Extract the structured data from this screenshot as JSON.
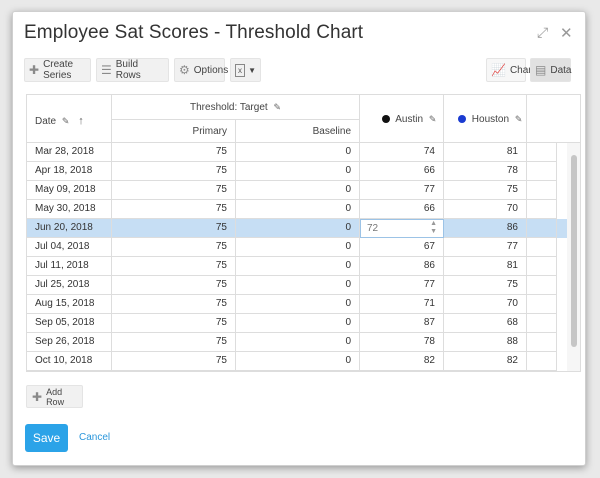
{
  "dialog": {
    "title": "Employee Sat Scores - Threshold Chart"
  },
  "toolbar": {
    "create_series": "Create Series",
    "build_rows": "Build Rows",
    "options": "Options",
    "export_icon_text": "x",
    "chart": "Chart",
    "data": "Data"
  },
  "table": {
    "headers": {
      "date": "Date",
      "group": "Threshold: Target",
      "primary": "Primary",
      "baseline": "Baseline",
      "austin": "Austin",
      "houston": "Houston"
    },
    "series_colors": {
      "austin": "#111111",
      "houston": "#1a3bd1"
    },
    "rows": [
      {
        "date": "Mar 28, 2018",
        "primary": "75",
        "baseline": "0",
        "austin": "74",
        "houston": "81"
      },
      {
        "date": "Apr 18, 2018",
        "primary": "75",
        "baseline": "0",
        "austin": "66",
        "houston": "78"
      },
      {
        "date": "May 09, 2018",
        "primary": "75",
        "baseline": "0",
        "austin": "77",
        "houston": "75"
      },
      {
        "date": "May 30, 2018",
        "primary": "75",
        "baseline": "0",
        "austin": "66",
        "houston": "70"
      },
      {
        "date": "Jun 20, 2018",
        "primary": "75",
        "baseline": "0",
        "austin": "72",
        "houston": "86"
      },
      {
        "date": "Jul 04, 2018",
        "primary": "75",
        "baseline": "0",
        "austin": "67",
        "houston": "77"
      },
      {
        "date": "Jul 11, 2018",
        "primary": "75",
        "baseline": "0",
        "austin": "86",
        "houston": "81"
      },
      {
        "date": "Jul 25, 2018",
        "primary": "75",
        "baseline": "0",
        "austin": "77",
        "houston": "75"
      },
      {
        "date": "Aug 15, 2018",
        "primary": "75",
        "baseline": "0",
        "austin": "71",
        "houston": "70"
      },
      {
        "date": "Sep 05, 2018",
        "primary": "75",
        "baseline": "0",
        "austin": "87",
        "houston": "68"
      },
      {
        "date": "Sep 26, 2018",
        "primary": "75",
        "baseline": "0",
        "austin": "78",
        "houston": "88"
      },
      {
        "date": "Oct 10, 2018",
        "primary": "75",
        "baseline": "0",
        "austin": "82",
        "houston": "82"
      }
    ]
  },
  "footer": {
    "add_row": "Add Row",
    "save": "Save",
    "cancel": "Cancel"
  }
}
